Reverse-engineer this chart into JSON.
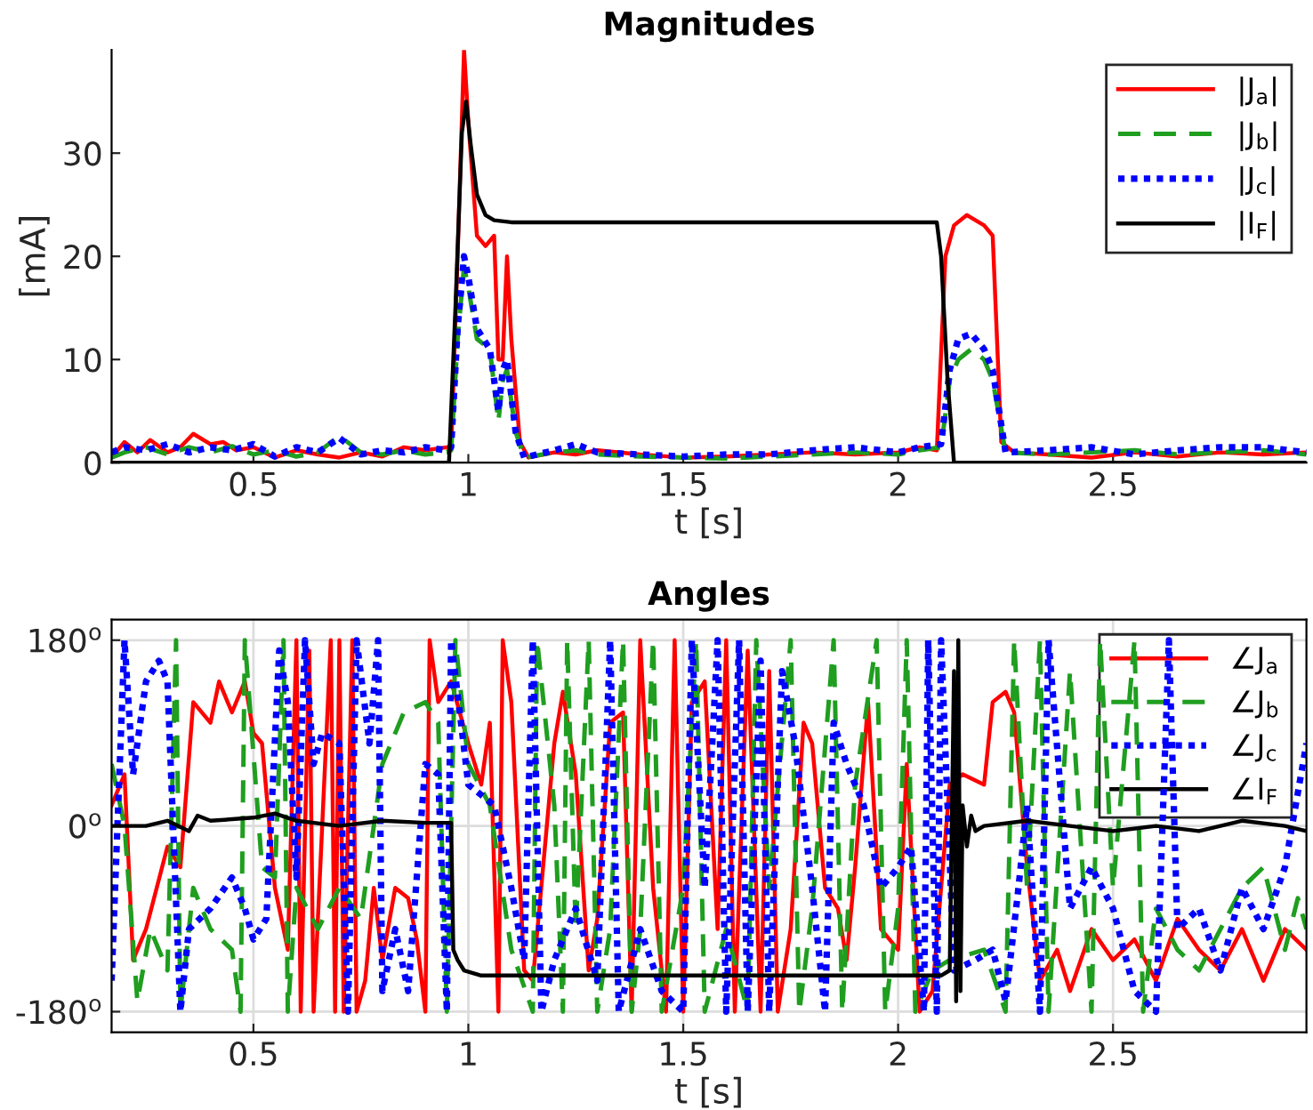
{
  "chart_data": [
    {
      "type": "line",
      "title": "Magnitudes",
      "xlabel": "t [s]",
      "ylabel": "[mA]",
      "xlim": [
        0.17,
        2.95
      ],
      "ylim": [
        0,
        40
      ],
      "xticks": [
        0.5,
        1,
        1.5,
        2,
        2.5
      ],
      "yticks": [
        0,
        10,
        20,
        30
      ],
      "grid": false,
      "legend": "top right",
      "series": [
        {
          "name": "|J$_{a}$|",
          "color": "#ff0000",
          "line_style": "solid",
          "x": [
            0.17,
            0.2,
            0.23,
            0.26,
            0.3,
            0.33,
            0.36,
            0.4,
            0.43,
            0.46,
            0.5,
            0.55,
            0.6,
            0.65,
            0.7,
            0.75,
            0.8,
            0.85,
            0.9,
            0.95,
            0.96,
            0.975,
            0.99,
            1.0,
            1.02,
            1.04,
            1.06,
            1.07,
            1.08,
            1.09,
            1.1,
            1.12,
            1.14,
            1.2,
            1.25,
            1.3,
            1.4,
            1.5,
            1.6,
            1.7,
            1.8,
            1.9,
            2.0,
            2.05,
            2.09,
            2.11,
            2.13,
            2.16,
            2.2,
            2.22,
            2.24,
            2.27,
            2.35,
            2.45,
            2.55,
            2.65,
            2.75,
            2.85,
            2.95
          ],
          "values": [
            0.5,
            2,
            1,
            2.2,
            1,
            1.5,
            2.8,
            1.8,
            2,
            1.2,
            1.5,
            0.5,
            1.2,
            0.8,
            0.5,
            1,
            0.6,
            1.5,
            1.2,
            1.5,
            1.2,
            20,
            40,
            33,
            22,
            21,
            22,
            10,
            10,
            20,
            12,
            2,
            0.5,
            1,
            0.8,
            1.2,
            0.8,
            0.5,
            0.6,
            0.8,
            1,
            0.8,
            1,
            1.5,
            1.2,
            20,
            23,
            24,
            23,
            22,
            2,
            1,
            0.8,
            0.5,
            1,
            0.6,
            1,
            0.8,
            1
          ]
        },
        {
          "name": "|J$_{b}$|",
          "color": "#1f9e1f",
          "line_style": "dashed",
          "x": [
            0.17,
            0.2,
            0.25,
            0.3,
            0.35,
            0.4,
            0.45,
            0.5,
            0.55,
            0.6,
            0.65,
            0.7,
            0.75,
            0.8,
            0.85,
            0.9,
            0.95,
            0.96,
            0.975,
            0.99,
            1.0,
            1.02,
            1.05,
            1.07,
            1.08,
            1.09,
            1.11,
            1.13,
            1.2,
            1.25,
            1.3,
            1.4,
            1.5,
            1.6,
            1.7,
            1.8,
            1.9,
            2.0,
            2.05,
            2.1,
            2.12,
            2.14,
            2.17,
            2.2,
            2.22,
            2.25,
            2.35,
            2.45,
            2.55,
            2.65,
            2.75,
            2.85,
            2.95
          ],
          "values": [
            0.5,
            1,
            1.5,
            0.8,
            1.5,
            1,
            1.6,
            0.8,
            1.2,
            0.6,
            1,
            2.6,
            1,
            0.8,
            1.2,
            0.8,
            1,
            1.2,
            12,
            19,
            17,
            12,
            11,
            4,
            8,
            9,
            3,
            0.5,
            1,
            1.2,
            0.8,
            0.6,
            0.5,
            0.4,
            0.6,
            0.8,
            1,
            0.8,
            1.2,
            1.5,
            8,
            10,
            11,
            10,
            8,
            1,
            0.8,
            1,
            1.2,
            0.8,
            1,
            1.2,
            0.8
          ]
        },
        {
          "name": "|J$_{c}$|",
          "color": "#0000ff",
          "line_style": "dotted",
          "x": [
            0.17,
            0.2,
            0.25,
            0.3,
            0.35,
            0.4,
            0.45,
            0.5,
            0.55,
            0.6,
            0.65,
            0.7,
            0.75,
            0.8,
            0.85,
            0.9,
            0.95,
            0.96,
            0.975,
            0.99,
            1.0,
            1.02,
            1.05,
            1.07,
            1.08,
            1.09,
            1.11,
            1.13,
            1.2,
            1.25,
            1.3,
            1.4,
            1.5,
            1.6,
            1.7,
            1.8,
            1.9,
            2.0,
            2.05,
            2.1,
            2.12,
            2.14,
            2.17,
            2.2,
            2.22,
            2.25,
            2.35,
            2.45,
            2.55,
            2.65,
            2.75,
            2.85,
            2.95
          ],
          "values": [
            1,
            1.5,
            1.2,
            1.8,
            1,
            1.5,
            1.2,
            1.8,
            0.6,
            1.5,
            1,
            2.4,
            0.8,
            1.2,
            1,
            1.5,
            1.2,
            1.5,
            13,
            20,
            18,
            13,
            11,
            5,
            9,
            10,
            3,
            0.5,
            1.2,
            1.8,
            1,
            0.8,
            0.6,
            0.8,
            0.8,
            1.2,
            1.5,
            1,
            1.5,
            1.8,
            9,
            12,
            12.5,
            11,
            9,
            1,
            1.2,
            1.5,
            0.8,
            1.2,
            1.5,
            1.5,
            1
          ]
        },
        {
          "name": "|I$_{F}$|",
          "color": "#000000",
          "line_style": "solid",
          "x": [
            0.17,
            0.955,
            0.97,
            0.985,
            0.995,
            1.005,
            1.02,
            1.04,
            1.06,
            1.1,
            1.5,
            2.0,
            2.09,
            2.1,
            2.115,
            2.13,
            2.95
          ],
          "values": [
            0,
            0,
            15,
            32,
            35,
            31,
            26,
            24,
            23.5,
            23.3,
            23.3,
            23.3,
            23.3,
            20,
            8,
            0,
            0
          ]
        }
      ]
    },
    {
      "type": "line",
      "title": "Angles",
      "xlabel": "t [s]",
      "xlim": [
        0.17,
        2.95
      ],
      "ylim": [
        -200,
        200
      ],
      "xticks": [
        0.5,
        1,
        1.5,
        2,
        2.5
      ],
      "yticks": [
        {
          "value": -180,
          "label": "-180$^{o}$"
        },
        {
          "value": 0,
          "label": "0$^{o}$"
        },
        {
          "value": 180,
          "label": "180$^{o}$"
        }
      ],
      "grid": true,
      "legend": "top right",
      "series": [
        {
          "name": "∠J$_{a}$",
          "color": "#ff0000",
          "line_style": "solid",
          "x": [
            0.17,
            0.2,
            0.22,
            0.25,
            0.3,
            0.33,
            0.36,
            0.4,
            0.42,
            0.45,
            0.48,
            0.5,
            0.52,
            0.55,
            0.58,
            0.6,
            0.61,
            0.63,
            0.64,
            0.68,
            0.69,
            0.7,
            0.71,
            0.73,
            0.74,
            0.76,
            0.78,
            0.8,
            0.83,
            0.86,
            0.88,
            0.9,
            0.91,
            0.93,
            0.96,
            1.0,
            1.03,
            1.05,
            1.07,
            1.08,
            1.1,
            1.13,
            1.15,
            1.2,
            1.22,
            1.25,
            1.28,
            1.3,
            1.33,
            1.36,
            1.38,
            1.4,
            1.43,
            1.46,
            1.48,
            1.5,
            1.52,
            1.55,
            1.58,
            1.6,
            1.62,
            1.65,
            1.68,
            1.7,
            1.72,
            1.75,
            1.78,
            1.8,
            1.83,
            1.86,
            1.88,
            1.9,
            1.93,
            1.96,
            2.0,
            2.02,
            2.05,
            2.08,
            2.12,
            2.15,
            2.2,
            2.22,
            2.25,
            2.27,
            2.3,
            2.33,
            2.37,
            2.4,
            2.45,
            2.5,
            2.55,
            2.6,
            2.65,
            2.7,
            2.75,
            2.8,
            2.85,
            2.9,
            2.95
          ],
          "values": [
            20,
            50,
            -130,
            -100,
            -20,
            -40,
            120,
            100,
            140,
            110,
            140,
            90,
            80,
            -60,
            -120,
            180,
            -180,
            170,
            -180,
            180,
            -180,
            180,
            -180,
            180,
            -180,
            -150,
            -60,
            -130,
            -60,
            -70,
            -110,
            -180,
            180,
            120,
            140,
            80,
            40,
            100,
            -180,
            180,
            120,
            -140,
            -150,
            80,
            130,
            50,
            -140,
            -90,
            100,
            110,
            -180,
            180,
            -60,
            -180,
            180,
            -180,
            120,
            140,
            -100,
            180,
            -180,
            170,
            -180,
            150,
            -180,
            -100,
            100,
            80,
            -60,
            -80,
            -130,
            -40,
            120,
            -100,
            -120,
            60,
            -180,
            -160,
            40,
            50,
            40,
            120,
            130,
            110,
            -40,
            -150,
            -120,
            -160,
            -100,
            -130,
            -110,
            -150,
            -90,
            -120,
            -140,
            -100,
            -150,
            -100,
            -120
          ]
        },
        {
          "name": "∠J$_{b}$",
          "color": "#1f9e1f",
          "line_style": "dashed",
          "x": [
            0.17,
            0.2,
            0.23,
            0.26,
            0.3,
            0.32,
            0.33,
            0.36,
            0.4,
            0.45,
            0.47,
            0.48,
            0.52,
            0.55,
            0.57,
            0.58,
            0.6,
            0.65,
            0.7,
            0.75,
            0.8,
            0.85,
            0.9,
            0.93,
            0.95,
            0.97,
            1.0,
            1.05,
            1.1,
            1.15,
            1.16,
            1.2,
            1.22,
            1.23,
            1.25,
            1.28,
            1.3,
            1.33,
            1.36,
            1.38,
            1.4,
            1.43,
            1.45,
            1.5,
            1.53,
            1.55,
            1.6,
            1.65,
            1.67,
            1.7,
            1.75,
            1.77,
            1.8,
            1.85,
            1.87,
            1.9,
            1.95,
            1.97,
            2.0,
            2.02,
            2.04,
            2.08,
            2.12,
            2.2,
            2.25,
            2.27,
            2.3,
            2.33,
            2.35,
            2.4,
            2.45,
            2.47,
            2.5,
            2.55,
            2.57,
            2.6,
            2.65,
            2.7,
            2.75,
            2.8,
            2.85,
            2.9,
            2.93,
            2.95
          ],
          "values": [
            60,
            0,
            -170,
            -100,
            -140,
            180,
            -180,
            -60,
            -100,
            -120,
            -180,
            180,
            -40,
            -50,
            180,
            -180,
            -60,
            -100,
            -60,
            -90,
            60,
            110,
            120,
            100,
            -180,
            180,
            60,
            20,
            -120,
            -180,
            180,
            20,
            -180,
            180,
            -100,
            180,
            -180,
            -100,
            180,
            -180,
            -100,
            180,
            -180,
            -60,
            180,
            -180,
            -100,
            -180,
            180,
            -60,
            180,
            -180,
            -80,
            180,
            -180,
            40,
            180,
            -180,
            -80,
            180,
            -180,
            -140,
            -130,
            -120,
            -180,
            180,
            -60,
            180,
            -180,
            150,
            -180,
            180,
            -60,
            180,
            -180,
            -80,
            -120,
            -140,
            -100,
            -60,
            -40,
            -120,
            -70,
            -100
          ]
        },
        {
          "name": "∠J$_{c}$",
          "color": "#0000ff",
          "line_style": "dotted",
          "x": [
            0.17,
            0.2,
            0.22,
            0.25,
            0.28,
            0.3,
            0.33,
            0.35,
            0.4,
            0.45,
            0.48,
            0.5,
            0.53,
            0.56,
            0.58,
            0.6,
            0.62,
            0.64,
            0.66,
            0.7,
            0.72,
            0.74,
            0.77,
            0.79,
            0.8,
            0.83,
            0.86,
            0.9,
            0.93,
            0.95,
            0.96,
            1.0,
            1.03,
            1.06,
            1.1,
            1.13,
            1.15,
            1.17,
            1.2,
            1.25,
            1.3,
            1.33,
            1.35,
            1.4,
            1.45,
            1.5,
            1.52,
            1.55,
            1.58,
            1.6,
            1.63,
            1.65,
            1.68,
            1.7,
            1.73,
            1.76,
            1.8,
            1.83,
            1.85,
            1.88,
            1.92,
            1.96,
            2.0,
            2.03,
            2.06,
            2.07,
            2.09,
            2.1,
            2.13,
            2.18,
            2.22,
            2.25,
            2.28,
            2.3,
            2.33,
            2.35,
            2.4,
            2.45,
            2.5,
            2.55,
            2.6,
            2.63,
            2.65,
            2.7,
            2.75,
            2.8,
            2.85,
            2.9,
            2.95
          ],
          "values": [
            -150,
            180,
            50,
            140,
            160,
            140,
            -180,
            -100,
            -80,
            -50,
            -80,
            -110,
            -90,
            170,
            120,
            -50,
            180,
            60,
            90,
            80,
            -180,
            180,
            80,
            180,
            -160,
            -100,
            -160,
            60,
            50,
            -180,
            180,
            40,
            30,
            20,
            -60,
            -130,
            180,
            -180,
            -130,
            -80,
            -150,
            180,
            -180,
            -100,
            -160,
            -180,
            180,
            -60,
            180,
            -180,
            180,
            -180,
            160,
            -180,
            150,
            80,
            -60,
            -180,
            100,
            60,
            20,
            -60,
            -40,
            -20,
            -180,
            180,
            -180,
            180,
            -140,
            -130,
            -120,
            -170,
            -60,
            20,
            -180,
            180,
            -80,
            -40,
            -80,
            -160,
            -180,
            180,
            -100,
            -80,
            -140,
            -60,
            -100,
            -40,
            80
          ]
        },
        {
          "name": "∠I$_{F}$",
          "color": "#000000",
          "line_style": "solid",
          "x": [
            0.17,
            0.25,
            0.3,
            0.35,
            0.37,
            0.4,
            0.5,
            0.55,
            0.6,
            0.7,
            0.8,
            0.9,
            0.96,
            0.965,
            0.975,
            0.99,
            1.03,
            1.5,
            2.0,
            2.1,
            2.12,
            2.13,
            2.135,
            2.14,
            2.145,
            2.15,
            2.16,
            2.17,
            2.18,
            2.2,
            2.3,
            2.4,
            2.5,
            2.6,
            2.7,
            2.8,
            2.9,
            2.95
          ],
          "values": [
            0,
            0,
            5,
            -5,
            10,
            5,
            8,
            12,
            5,
            0,
            5,
            3,
            3,
            -120,
            -130,
            -140,
            -145,
            -145,
            -145,
            -145,
            -140,
            150,
            -170,
            180,
            -160,
            20,
            -20,
            10,
            -5,
            0,
            5,
            0,
            -5,
            0,
            -5,
            5,
            0,
            -5
          ]
        }
      ]
    }
  ]
}
